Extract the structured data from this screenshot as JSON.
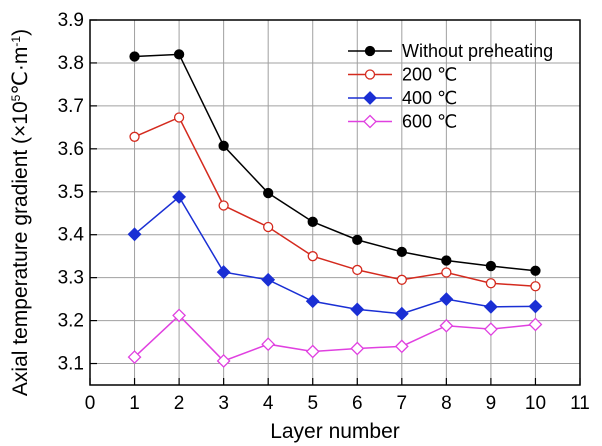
{
  "chart_data": {
    "type": "line",
    "xlabel": "Layer number",
    "ylabel": {
      "pre": "Axial temperature gradient (×10",
      "exp1": "5",
      "mid": "℃·m",
      "exp2": "-1",
      "post": ")"
    },
    "xlim": [
      0,
      11
    ],
    "ylim": [
      3.05,
      3.9
    ],
    "xticks": [
      "0",
      "1",
      "2",
      "3",
      "4",
      "5",
      "6",
      "7",
      "8",
      "9",
      "10",
      "11"
    ],
    "yticks": [
      "3.1",
      "3.2",
      "3.3",
      "3.4",
      "3.5",
      "3.6",
      "3.7",
      "3.8",
      "3.9"
    ],
    "grid": true,
    "legend_position": "top-right",
    "x": [
      1,
      2,
      3,
      4,
      5,
      6,
      7,
      8,
      9,
      10
    ],
    "series": [
      {
        "name": "Without preheating",
        "color": "#000000",
        "marker": "circle-filled",
        "values": [
          3.815,
          3.82,
          3.607,
          3.497,
          3.43,
          3.388,
          3.36,
          3.34,
          3.327,
          3.316
        ]
      },
      {
        "name": "200 ℃",
        "color": "#d42a1e",
        "marker": "circle-open",
        "values": [
          3.628,
          3.673,
          3.468,
          3.418,
          3.35,
          3.318,
          3.295,
          3.312,
          3.287,
          3.28
        ]
      },
      {
        "name": "400 ℃",
        "color": "#1a2fd4",
        "marker": "diamond-filled",
        "values": [
          3.401,
          3.488,
          3.313,
          3.295,
          3.245,
          3.226,
          3.216,
          3.25,
          3.232,
          3.233
        ]
      },
      {
        "name": "600 ℃",
        "color": "#e040e0",
        "marker": "diamond-open",
        "values": [
          3.115,
          3.212,
          3.106,
          3.145,
          3.128,
          3.135,
          3.14,
          3.188,
          3.18,
          3.191
        ]
      }
    ]
  }
}
